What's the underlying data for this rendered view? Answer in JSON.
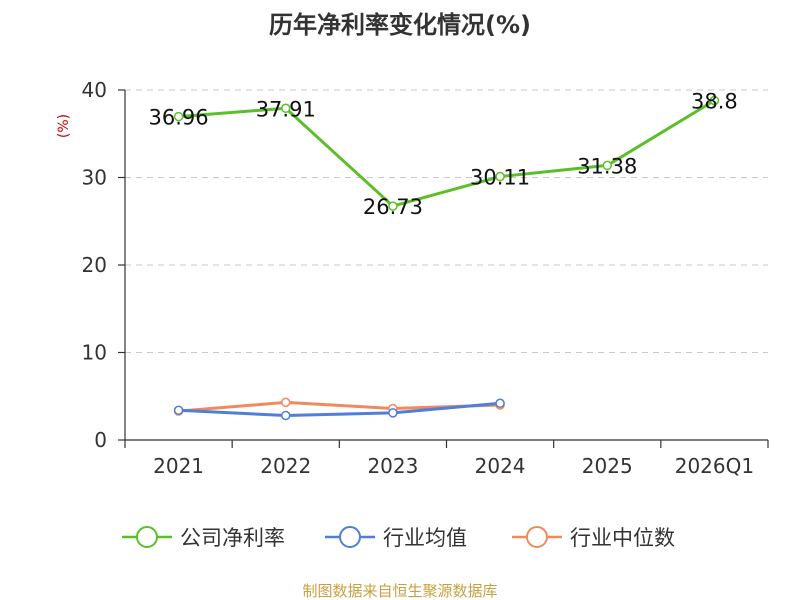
{
  "chart_data": {
    "type": "line",
    "title": "历年净利率变化情况(%)",
    "ylabel": "(%)",
    "xlabel": "",
    "categories": [
      "2021",
      "2022",
      "2023",
      "2024",
      "2025",
      "2026Q1"
    ],
    "ylim": [
      0,
      40
    ],
    "yticks": [
      0,
      10,
      20,
      30,
      40
    ],
    "grid": true,
    "legend_position": "bottom",
    "series": [
      {
        "name": "公司净利率",
        "color": "#5cbf2a",
        "values": [
          36.96,
          37.91,
          26.73,
          30.11,
          31.38,
          38.8
        ],
        "labels": [
          "36.96",
          "37.91",
          "26.73",
          "30.11",
          "31.38",
          "38.8"
        ]
      },
      {
        "name": "行业均值",
        "color": "#4f7fd9",
        "values": [
          3.4,
          2.8,
          3.1,
          4.2,
          null,
          null
        ]
      },
      {
        "name": "行业中位数",
        "color": "#f08a5d",
        "values": [
          3.3,
          4.3,
          3.6,
          4.0,
          null,
          null
        ]
      }
    ]
  },
  "footer": {
    "source": "制图数据来自恒生聚源数据库"
  }
}
